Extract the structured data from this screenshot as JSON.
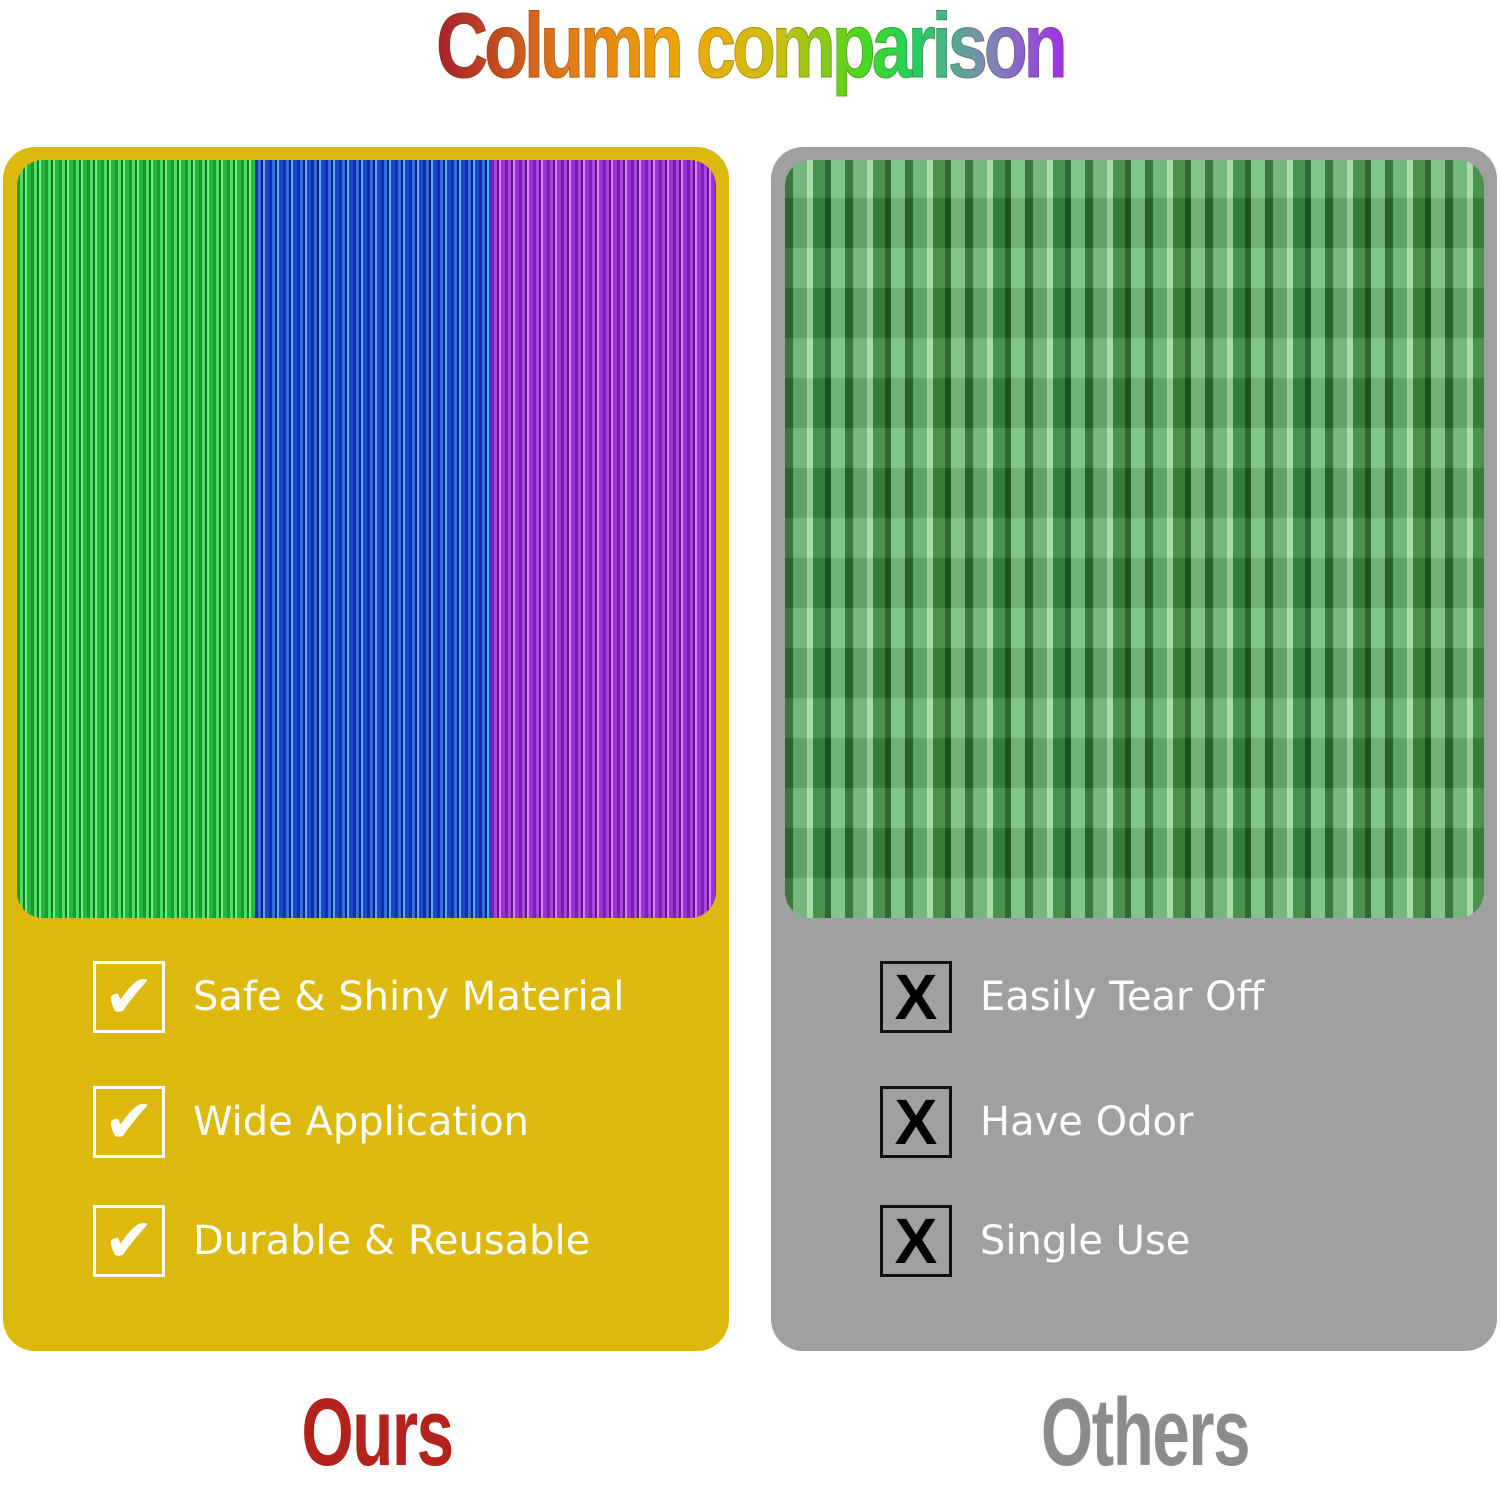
{
  "title": "Column comparison",
  "colors": {
    "ours_panel": "#dcb90c",
    "others_panel": "#a0a0a0",
    "ours_label": "#b3221c",
    "others_label": "#8c8c8c"
  },
  "ours": {
    "label": "Ours",
    "icon": "checkmark-icon",
    "icon_glyph": "✔",
    "features": [
      "Safe & Shiny Material",
      "Wide Application",
      "Durable & Reusable"
    ]
  },
  "others": {
    "label": "Others",
    "icon": "x-mark-icon",
    "icon_glyph": "X",
    "features": [
      "Easily Tear Off",
      "Have Odor",
      "Single Use"
    ]
  }
}
